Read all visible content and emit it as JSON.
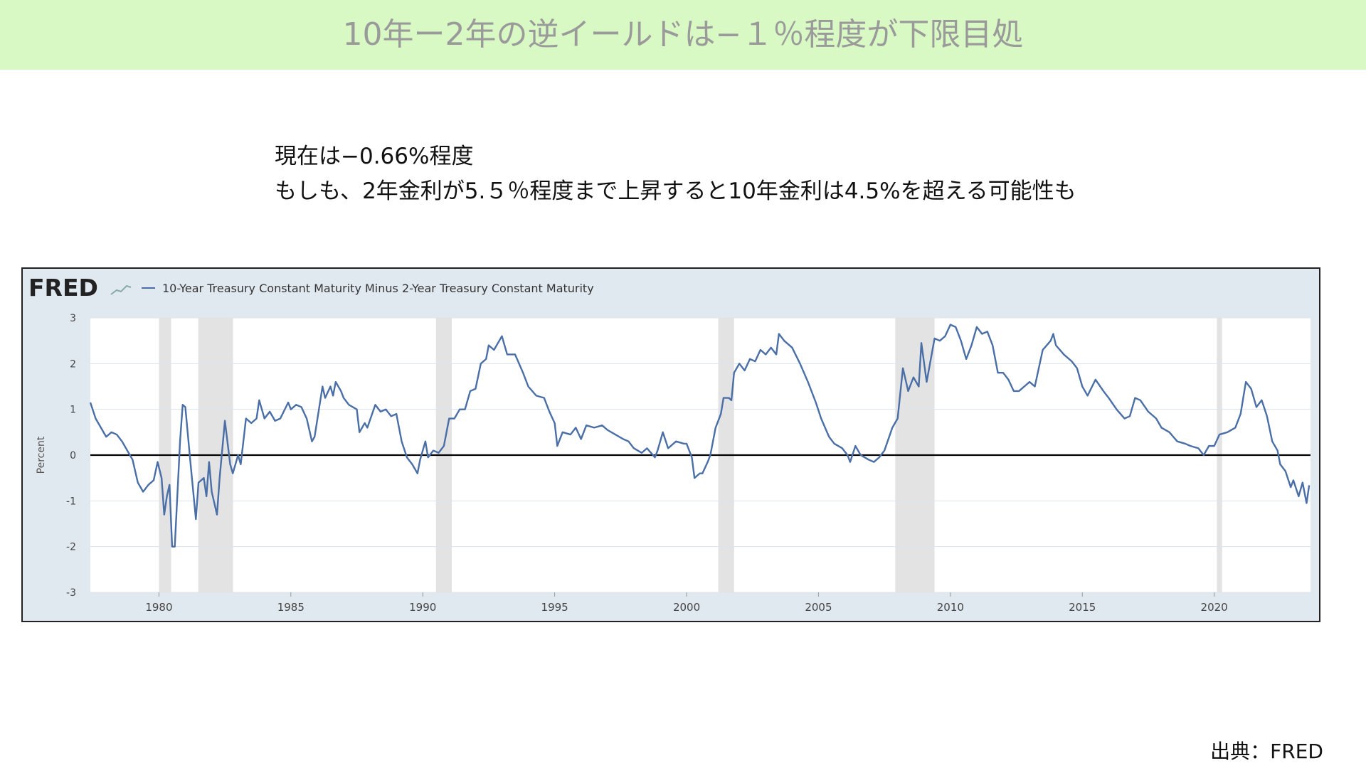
{
  "slide": {
    "title": "10年ー2年の逆イールドは−１％程度が下限目処",
    "lines": [
      "現在は−0.66%程度",
      "もしも、2年金利が5.５％程度まで上昇すると10年金利は4.5%を超える可能性も"
    ],
    "source": "出典：FRED"
  },
  "chart_data": {
    "type": "line",
    "logo": "FRED",
    "y_label": "Percent",
    "x": [
      1977.4,
      1977.6,
      1977.8,
      1978.0,
      1978.2,
      1978.4,
      1978.6,
      1978.8,
      1979.0,
      1979.2,
      1979.4,
      1979.6,
      1979.8,
      1979.95,
      1980.1,
      1980.2,
      1980.3,
      1980.4,
      1980.5,
      1980.6,
      1980.8,
      1980.9,
      1981.0,
      1981.2,
      1981.4,
      1981.5,
      1981.7,
      1981.8,
      1981.9,
      1982.0,
      1982.2,
      1982.3,
      1982.5,
      1982.7,
      1982.8,
      1983.0,
      1983.1,
      1983.3,
      1983.5,
      1983.7,
      1983.8,
      1984.0,
      1984.2,
      1984.4,
      1984.6,
      1984.9,
      1985.0,
      1985.2,
      1985.4,
      1985.6,
      1985.8,
      1985.9,
      1986.2,
      1986.3,
      1986.5,
      1986.6,
      1986.7,
      1986.9,
      1987.0,
      1987.2,
      1987.5,
      1987.6,
      1987.8,
      1987.9,
      1988.2,
      1988.4,
      1988.6,
      1988.8,
      1989.0,
      1989.2,
      1989.4,
      1989.6,
      1989.8,
      1989.9,
      1990.1,
      1990.2,
      1990.4,
      1990.6,
      1990.8,
      1991.0,
      1991.2,
      1991.4,
      1991.6,
      1991.8,
      1992.0,
      1992.2,
      1992.4,
      1992.5,
      1992.7,
      1992.9,
      1993.0,
      1993.2,
      1993.5,
      1993.8,
      1994.0,
      1994.3,
      1994.6,
      1994.8,
      1995.0,
      1995.1,
      1995.3,
      1995.6,
      1995.8,
      1996.0,
      1996.2,
      1996.5,
      1996.8,
      1997.0,
      1997.3,
      1997.6,
      1997.8,
      1998.0,
      1998.3,
      1998.5,
      1998.8,
      1998.9,
      1999.1,
      1999.3,
      1999.6,
      1999.9,
      2000.0,
      2000.2,
      2000.3,
      2000.5,
      2000.6,
      2000.8,
      2000.9,
      2001.1,
      2001.3,
      2001.4,
      2001.6,
      2001.7,
      2001.8,
      2002.0,
      2002.2,
      2002.4,
      2002.6,
      2002.8,
      2003.0,
      2003.2,
      2003.4,
      2003.5,
      2003.7,
      2004.0,
      2004.3,
      2004.6,
      2004.9,
      2005.1,
      2005.4,
      2005.6,
      2005.9,
      2006.1,
      2006.2,
      2006.4,
      2006.6,
      2006.9,
      2007.1,
      2007.3,
      2007.5,
      2007.8,
      2008.0,
      2008.2,
      2008.4,
      2008.6,
      2008.8,
      2008.9,
      2009.1,
      2009.4,
      2009.6,
      2009.8,
      2010.0,
      2010.2,
      2010.4,
      2010.6,
      2010.8,
      2011.0,
      2011.2,
      2011.4,
      2011.6,
      2011.8,
      2012.0,
      2012.2,
      2012.4,
      2012.6,
      2012.8,
      2013.0,
      2013.2,
      2013.5,
      2013.8,
      2013.9,
      2014.0,
      2014.3,
      2014.6,
      2014.8,
      2015.0,
      2015.2,
      2015.5,
      2015.8,
      2016.0,
      2016.3,
      2016.6,
      2016.8,
      2017.0,
      2017.2,
      2017.5,
      2017.8,
      2018.0,
      2018.3,
      2018.6,
      2018.9,
      2019.1,
      2019.4,
      2019.6,
      2019.8,
      2020.0,
      2020.2,
      2020.5,
      2020.8,
      2021.0,
      2021.2,
      2021.4,
      2021.6,
      2021.8,
      2022.0,
      2022.2,
      2022.4,
      2022.5,
      2022.7,
      2022.9,
      2023.0,
      2023.2,
      2023.35,
      2023.5,
      2023.6
    ],
    "series": [
      {
        "name": "10-Year Treasury Constant Maturity Minus 2-Year Treasury Constant Maturity",
        "color": "#4a6ea6",
        "values": [
          1.15,
          0.8,
          0.6,
          0.4,
          0.5,
          0.45,
          0.3,
          0.1,
          -0.1,
          -0.6,
          -0.8,
          -0.65,
          -0.55,
          -0.15,
          -0.5,
          -1.3,
          -0.9,
          -0.65,
          -2.0,
          -2.0,
          0.3,
          1.1,
          1.05,
          -0.2,
          -1.4,
          -0.6,
          -0.5,
          -0.9,
          -0.15,
          -0.8,
          -1.3,
          -0.5,
          0.75,
          -0.2,
          -0.4,
          0.0,
          -0.2,
          0.8,
          0.7,
          0.8,
          1.2,
          0.8,
          0.95,
          0.75,
          0.8,
          1.15,
          1.0,
          1.1,
          1.05,
          0.8,
          0.3,
          0.4,
          1.5,
          1.25,
          1.5,
          1.3,
          1.6,
          1.4,
          1.25,
          1.1,
          1.0,
          0.5,
          0.7,
          0.6,
          1.1,
          0.95,
          1.0,
          0.85,
          0.9,
          0.3,
          -0.05,
          -0.2,
          -0.4,
          -0.1,
          0.3,
          -0.05,
          0.1,
          0.05,
          0.2,
          0.8,
          0.8,
          1.0,
          1.0,
          1.4,
          1.45,
          2.0,
          2.1,
          2.4,
          2.3,
          2.5,
          2.6,
          2.2,
          2.2,
          1.8,
          1.5,
          1.3,
          1.25,
          0.95,
          0.7,
          0.2,
          0.5,
          0.45,
          0.6,
          0.35,
          0.65,
          0.6,
          0.65,
          0.55,
          0.45,
          0.35,
          0.3,
          0.15,
          0.05,
          0.15,
          -0.05,
          0.1,
          0.5,
          0.15,
          0.3,
          0.25,
          0.25,
          -0.05,
          -0.5,
          -0.4,
          -0.4,
          -0.15,
          0.0,
          0.6,
          0.9,
          1.25,
          1.25,
          1.2,
          1.8,
          2.0,
          1.85,
          2.1,
          2.05,
          2.3,
          2.2,
          2.35,
          2.2,
          2.65,
          2.5,
          2.35,
          2.0,
          1.6,
          1.15,
          0.8,
          0.4,
          0.25,
          0.15,
          0.0,
          -0.15,
          0.2,
          0.0,
          -0.1,
          -0.15,
          -0.05,
          0.1,
          0.6,
          0.8,
          1.9,
          1.4,
          1.7,
          1.5,
          2.45,
          1.6,
          2.55,
          2.5,
          2.6,
          2.85,
          2.8,
          2.5,
          2.1,
          2.4,
          2.8,
          2.65,
          2.7,
          2.4,
          1.8,
          1.8,
          1.65,
          1.4,
          1.4,
          1.5,
          1.6,
          1.5,
          2.3,
          2.5,
          2.65,
          2.4,
          2.2,
          2.05,
          1.9,
          1.5,
          1.3,
          1.65,
          1.4,
          1.25,
          1.0,
          0.8,
          0.85,
          1.25,
          1.2,
          0.95,
          0.8,
          0.6,
          0.5,
          0.3,
          0.25,
          0.2,
          0.15,
          0.0,
          0.2,
          0.2,
          0.45,
          0.5,
          0.6,
          0.9,
          1.6,
          1.45,
          1.05,
          1.2,
          0.85,
          0.3,
          0.1,
          -0.2,
          -0.35,
          -0.7,
          -0.55,
          -0.9,
          -0.6,
          -1.05,
          -0.66
        ]
      }
    ],
    "recessions": [
      [
        1980.0,
        1980.46
      ],
      [
        1981.49,
        1982.81
      ],
      [
        1990.5,
        1991.1
      ],
      [
        2001.2,
        2001.8
      ],
      [
        2007.91,
        2009.4
      ],
      [
        2020.1,
        2020.3
      ]
    ],
    "xlim": [
      1977.4,
      2023.65
    ],
    "xticks": [
      1980,
      1985,
      1990,
      1995,
      2000,
      2005,
      2010,
      2015,
      2020
    ],
    "ylim": [
      -3,
      3
    ],
    "yticks": [
      -3,
      -2,
      -1,
      0,
      1,
      2,
      3
    ],
    "grid": true,
    "zero_line": 0
  }
}
